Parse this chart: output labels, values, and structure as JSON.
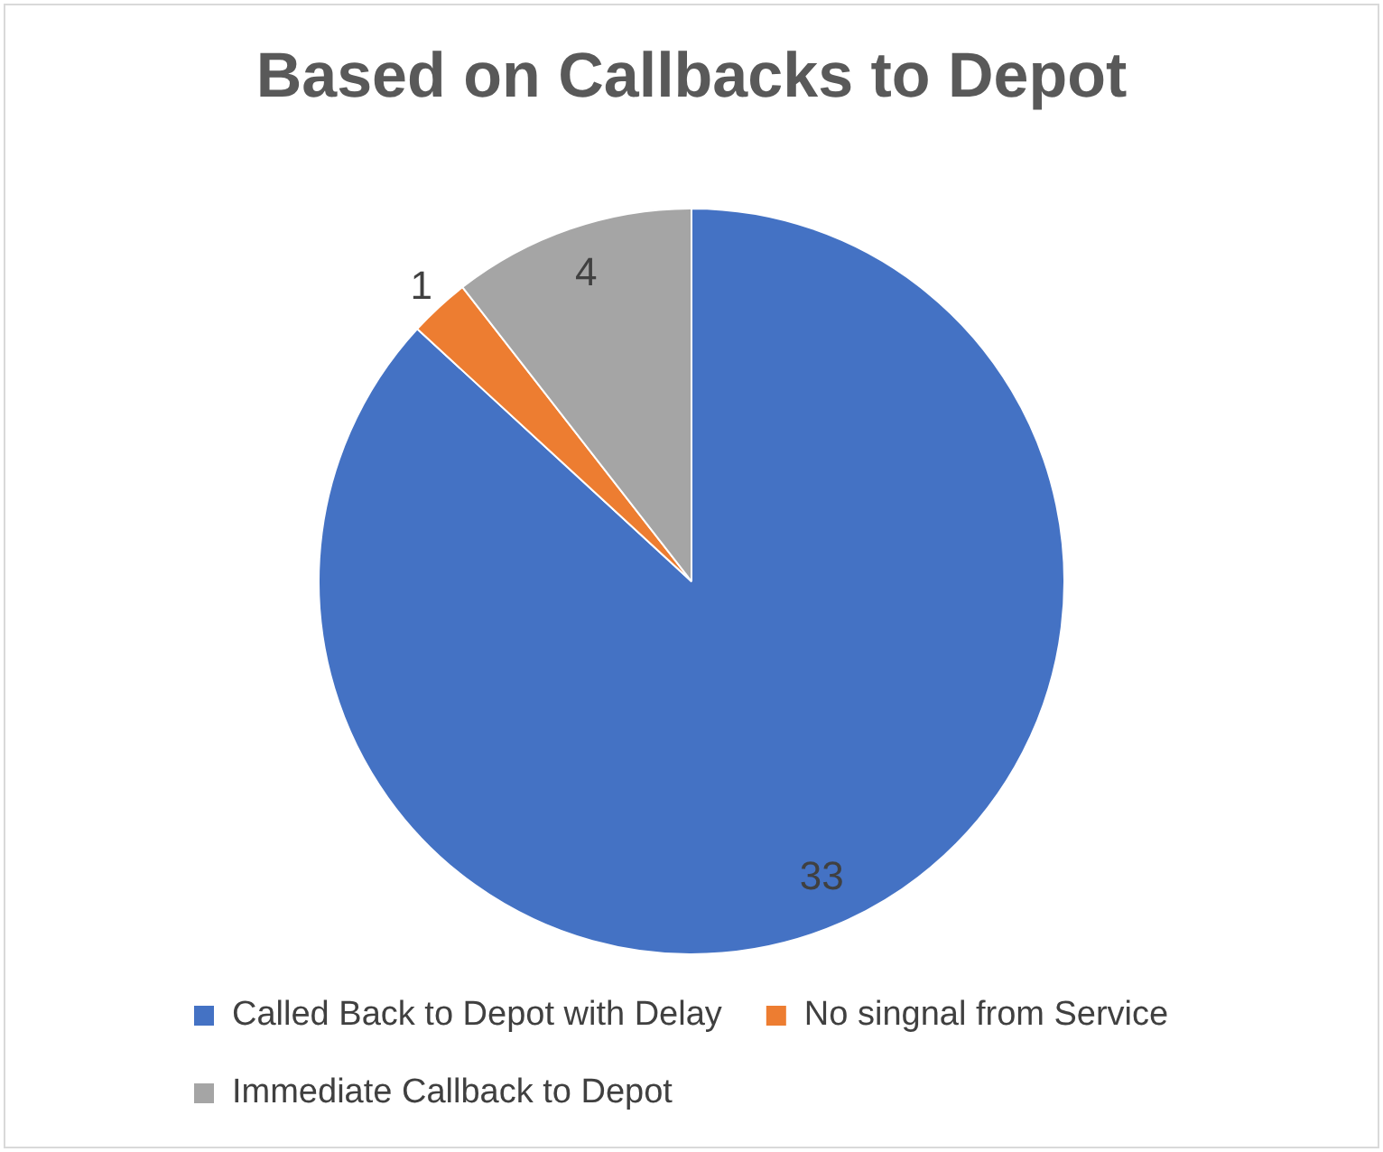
{
  "chart_data": {
    "type": "pie",
    "title": "Based on Callbacks to Depot",
    "categories": [
      "Called Back to Depot with Delay",
      "No singnal from Service",
      "Immediate Callback to Depot"
    ],
    "values": [
      33,
      1,
      4
    ],
    "colors": [
      "#4472c4",
      "#ed7d31",
      "#a5a5a5"
    ],
    "data_labels": true,
    "legend": "bottom"
  }
}
